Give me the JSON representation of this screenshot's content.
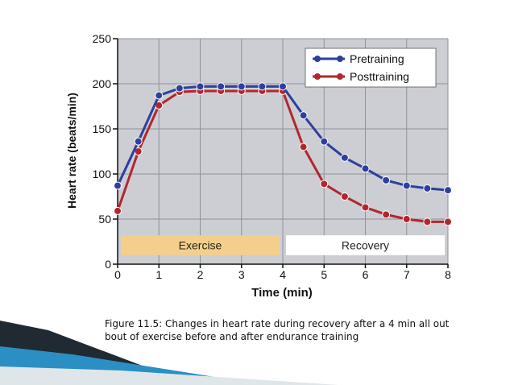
{
  "colors": {
    "pretraining": "#2e3f9e",
    "posttraining": "#b32630",
    "plot_bg": "#ccced3",
    "exercise_band": "#f4cf8c",
    "recovery_band": "#ffffff",
    "deco_dark": "#1f2a33",
    "deco_blue": "#2b8fc4"
  },
  "chart_data": {
    "type": "line",
    "xlabel": "Time (min)",
    "ylabel": "Heart rate (beats/min)",
    "xlim": [
      0,
      8
    ],
    "ylim": [
      0,
      250
    ],
    "xticks": [
      0,
      1,
      2,
      3,
      4,
      5,
      6,
      7,
      8
    ],
    "yticks": [
      0,
      50,
      100,
      150,
      200,
      250
    ],
    "grid": true,
    "legend": "top-right",
    "bands": [
      {
        "label": "Exercise",
        "x": [
          0,
          4
        ],
        "y": [
          10,
          32
        ]
      },
      {
        "label": "Recovery",
        "x": [
          4,
          8
        ],
        "y": [
          10,
          32
        ]
      }
    ],
    "series": [
      {
        "name": "Pretraining",
        "x": [
          0,
          0.5,
          1,
          1.5,
          2,
          2.5,
          3,
          3.5,
          4,
          4.5,
          5,
          5.5,
          6,
          6.5,
          7,
          7.5,
          8
        ],
        "y": [
          87,
          136,
          187,
          195,
          197,
          197,
          197,
          197,
          197,
          165,
          136,
          118,
          106,
          93,
          87,
          84,
          82
        ]
      },
      {
        "name": "Posttraining",
        "x": [
          0,
          0.5,
          1,
          1.5,
          2,
          2.5,
          3,
          3.5,
          4,
          4.5,
          5,
          5.5,
          6,
          6.5,
          7,
          7.5,
          8
        ],
        "y": [
          59,
          125,
          176,
          191,
          192,
          192,
          192,
          192,
          192,
          130,
          89,
          75,
          63,
          55,
          50,
          47,
          47
        ]
      }
    ]
  },
  "caption": "Figure 11.5: Changes in heart rate during recovery after a 4 min all out bout of exercise before and after endurance training"
}
